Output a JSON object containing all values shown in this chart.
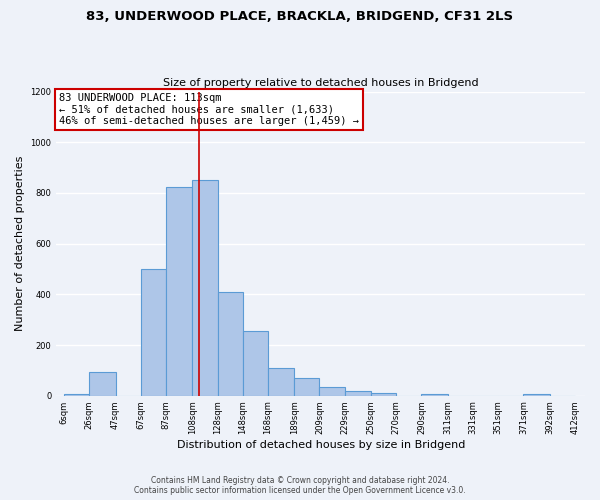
{
  "title_line1": "83, UNDERWOOD PLACE, BRACKLA, BRIDGEND, CF31 2LS",
  "title_line2": "Size of property relative to detached houses in Bridgend",
  "xlabel": "Distribution of detached houses by size in Bridgend",
  "ylabel": "Number of detached properties",
  "bar_left_edges": [
    6,
    26,
    47,
    67,
    87,
    108,
    128,
    148,
    168,
    189,
    209,
    229,
    250,
    270,
    290,
    311,
    331,
    351,
    371,
    392
  ],
  "bar_heights": [
    5,
    95,
    0,
    500,
    825,
    850,
    410,
    255,
    110,
    70,
    35,
    20,
    10,
    0,
    5,
    0,
    0,
    0,
    5,
    0
  ],
  "bar_widths": [
    20,
    21,
    20,
    20,
    21,
    20,
    20,
    20,
    21,
    20,
    20,
    21,
    20,
    20,
    21,
    20,
    20,
    20,
    21,
    20
  ],
  "tick_labels": [
    "6sqm",
    "26sqm",
    "47sqm",
    "67sqm",
    "87sqm",
    "108sqm",
    "128sqm",
    "148sqm",
    "168sqm",
    "189sqm",
    "209sqm",
    "229sqm",
    "250sqm",
    "270sqm",
    "290sqm",
    "311sqm",
    "331sqm",
    "351sqm",
    "371sqm",
    "392sqm",
    "412sqm"
  ],
  "tick_positions": [
    6,
    26,
    47,
    67,
    87,
    108,
    128,
    148,
    168,
    189,
    209,
    229,
    250,
    270,
    290,
    311,
    331,
    351,
    371,
    392,
    412
  ],
  "ylim": [
    0,
    1200
  ],
  "xlim": [
    0,
    420
  ],
  "bar_color": "#aec6e8",
  "bar_edge_color": "#5b9bd5",
  "vline_x": 113,
  "vline_color": "#cc0000",
  "annotation_text": "83 UNDERWOOD PLACE: 113sqm\n← 51% of detached houses are smaller (1,633)\n46% of semi-detached houses are larger (1,459) →",
  "annotation_box_color": "#ffffff",
  "annotation_box_edge": "#cc0000",
  "footer_line1": "Contains HM Land Registry data © Crown copyright and database right 2024.",
  "footer_line2": "Contains public sector information licensed under the Open Government Licence v3.0.",
  "background_color": "#eef2f9",
  "grid_color": "#ffffff",
  "yticks": [
    0,
    200,
    400,
    600,
    800,
    1000,
    1200
  ]
}
